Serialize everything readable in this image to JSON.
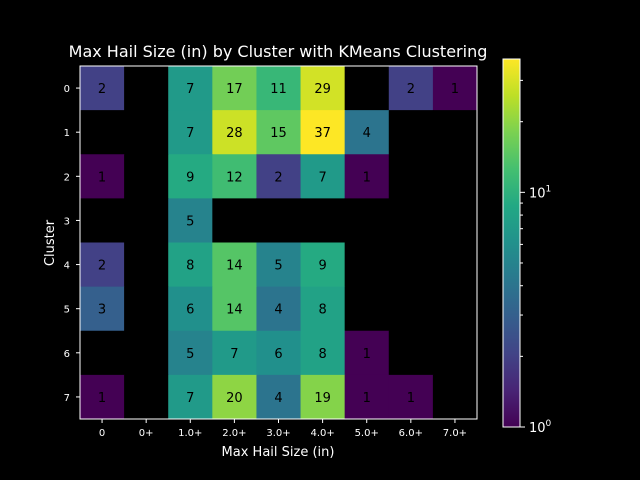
{
  "chart_data": {
    "type": "heatmap",
    "title": "Max Hail Size (in) by Cluster with KMeans Clustering",
    "xlabel": "Max Hail Size (in)",
    "ylabel": "Cluster",
    "x_categories": [
      "0",
      "0+",
      "1.0+",
      "2.0+",
      "3.0+",
      "4.0+",
      "5.0+",
      "6.0+",
      "7.0+"
    ],
    "y_categories": [
      "0",
      "1",
      "2",
      "3",
      "4",
      "5",
      "6",
      "7"
    ],
    "values": [
      [
        2,
        null,
        7,
        17,
        11,
        29,
        null,
        2,
        1
      ],
      [
        null,
        null,
        7,
        28,
        15,
        37,
        4,
        null,
        null
      ],
      [
        1,
        null,
        9,
        12,
        2,
        7,
        1,
        null,
        null
      ],
      [
        null,
        null,
        5,
        null,
        null,
        null,
        null,
        null,
        null
      ],
      [
        2,
        null,
        8,
        14,
        5,
        9,
        null,
        null,
        null
      ],
      [
        3,
        null,
        6,
        14,
        4,
        8,
        null,
        null,
        null
      ],
      [
        null,
        null,
        5,
        7,
        6,
        8,
        1,
        null,
        null
      ],
      [
        1,
        null,
        7,
        20,
        4,
        19,
        1,
        1,
        null
      ]
    ],
    "colorbar": {
      "scale": "log",
      "colormap": "viridis",
      "range": [
        1,
        37
      ],
      "major_ticks": [
        1,
        10
      ],
      "major_labels": [
        "10",
        "10"
      ],
      "major_exponents": [
        "0",
        "1"
      ]
    },
    "colors": {
      "background": "#000000",
      "text": "#ffffff",
      "annotation": "#000000",
      "empty_cell": "#000000"
    }
  }
}
